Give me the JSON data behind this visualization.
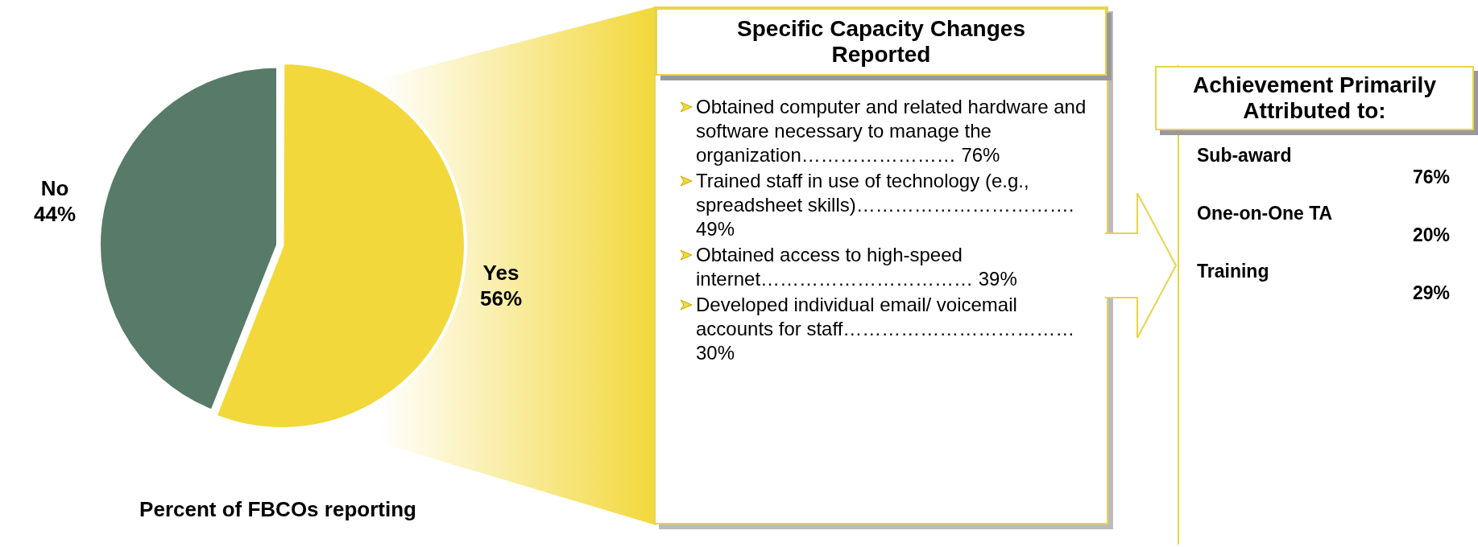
{
  "chart_data": [
    {
      "type": "pie",
      "title": "Percent of FBCOs reporting",
      "categories": [
        "Yes",
        "No"
      ],
      "values": [
        56,
        44
      ],
      "colors": [
        "#f2d83a",
        "#587a68"
      ],
      "value_labels": [
        "56%",
        "44%"
      ],
      "legend": false
    },
    {
      "type": "other",
      "title": "Specific Capacity Changes Reported",
      "annotations": [
        "Obtained computer and related hardware and software necessary to manage the organization…………………… 76%",
        "Trained staff in use of technology (e.g., spreadsheet skills)……………………………. 49%",
        "Obtained access to high-speed internet…………………………… 39%",
        "Developed individual email/ voicemail accounts for staff……………………………… 30%"
      ]
    },
    {
      "type": "other",
      "title": "Achievement Primarily Attributed to:",
      "annotations": [
        "Sub-award",
        "76%",
        "One-on-One TA",
        "20%",
        "Training",
        "29%"
      ]
    }
  ]
}
